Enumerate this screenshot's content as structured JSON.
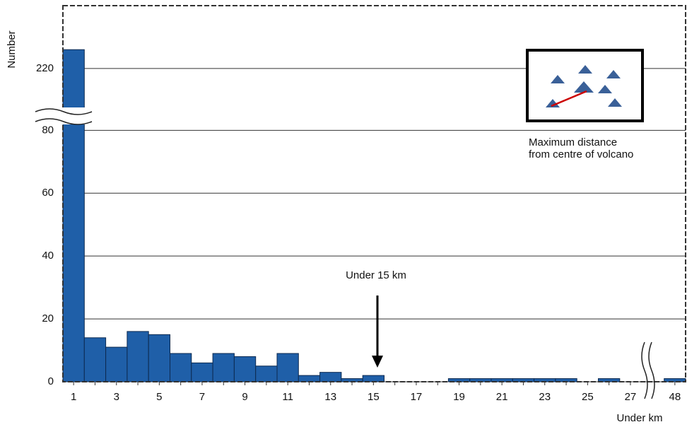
{
  "chart_data": {
    "type": "bar",
    "y_label": "Number",
    "x_label": "Under km",
    "categories": [
      "1",
      null,
      "3",
      null,
      "5",
      null,
      "7",
      null,
      "9",
      null,
      "11",
      null,
      "13",
      null,
      "15",
      null,
      "17",
      null,
      "19",
      null,
      "21",
      null,
      "23",
      null,
      "25",
      null,
      "27",
      "48"
    ],
    "values": [
      226,
      14,
      11,
      16,
      15,
      9,
      6,
      9,
      8,
      5,
      9,
      2,
      3,
      1,
      2,
      0,
      0,
      0,
      1,
      1,
      1,
      1,
      1,
      1,
      0,
      1,
      0,
      1
    ],
    "color": "#1f5fa8",
    "ylim": [
      0,
      240
    ],
    "ybreak": [
      85,
      215
    ],
    "yticks": [
      0,
      20,
      40,
      60,
      80,
      220
    ],
    "grid": true,
    "annotations": {
      "arrow_label": "Under 15 km",
      "inset_caption": [
        "Maximum distance",
        "from centre of volcano"
      ]
    }
  }
}
